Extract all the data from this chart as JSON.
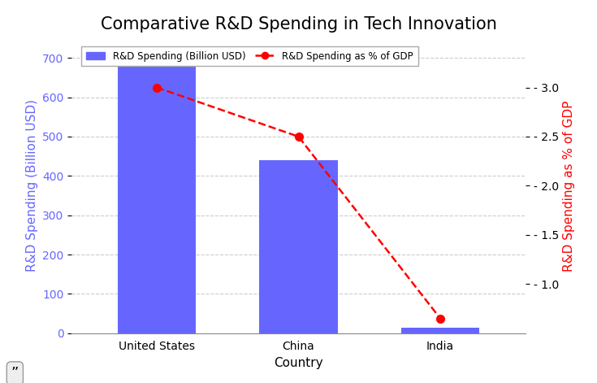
{
  "title": "Comparative R&D Spending in Tech Innovation",
  "countries": [
    "United States",
    "China",
    "India"
  ],
  "xlabel": "Country",
  "ylabel_left": "R&D Spending (Billion USD)",
  "ylabel_right": "R&D Spending as % of GDP",
  "bar_values": [
    700,
    440,
    15
  ],
  "gdp_pct_values": [
    3.0,
    2.5,
    0.65
  ],
  "bar_color": "#6666ff",
  "line_color": "#ff0000",
  "bar_label": "R&D Spending (Billion USD)",
  "line_label": "R&D Spending as % of GDP",
  "ylim_left": [
    0,
    750
  ],
  "ylim_right": [
    0.5,
    3.5
  ],
  "yticks_left": [
    0,
    100,
    200,
    300,
    400,
    500,
    600,
    700
  ],
  "yticks_right": [
    1.0,
    1.5,
    2.0,
    2.5,
    3.0
  ],
  "background_color": "#ffffff",
  "grid_color": "#cccccc",
  "left_label_color": "#6666ff",
  "right_label_color": "#ff0000",
  "title_fontsize": 15,
  "axis_label_fontsize": 11,
  "tick_fontsize": 10,
  "figsize": [
    7.35,
    4.71
  ],
  "dpi": 100
}
